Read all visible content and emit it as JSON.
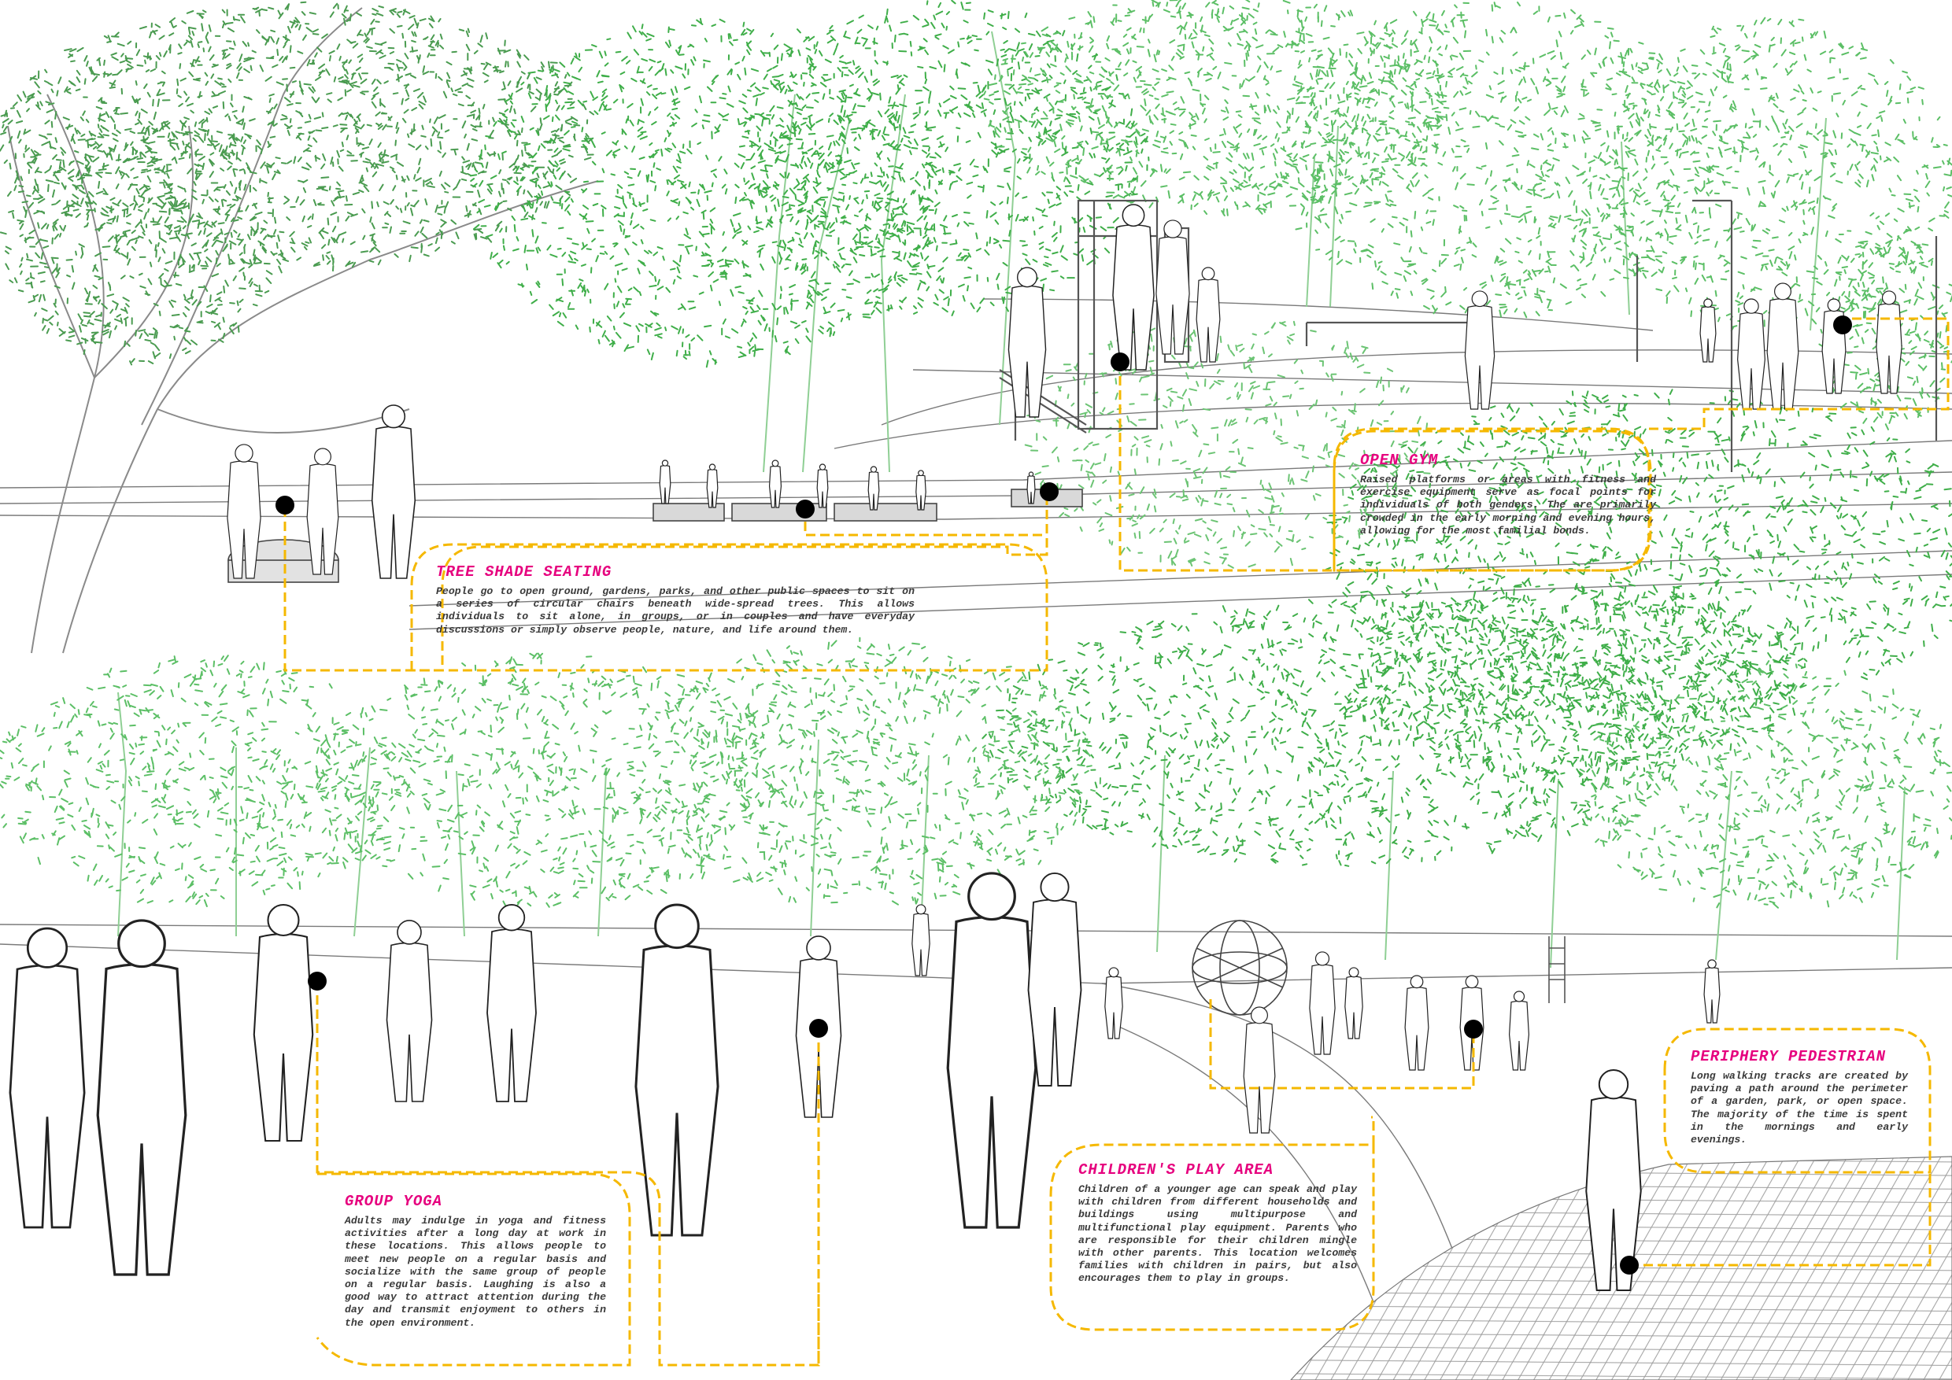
{
  "colors": {
    "leader": "#f5b800",
    "title": "#e6007e",
    "text": "#3a3a3a",
    "foliage": "#3fae49",
    "line": "#5a5a5a",
    "marker": "#000000"
  },
  "callouts": {
    "tree_shade": {
      "title": "TREE SHADE SEATING",
      "text": "People go to open ground, gardens, parks, and other public spaces to sit on a series of circular chairs beneath wide-spread trees. This allows individuals to sit alone, in groups, or in couples and have everyday discussions or simply observe people, nature, and life around them."
    },
    "open_gym": {
      "title": "OPEN GYM",
      "text": "Raised platforms or areas with fitness and exercise equipment serve as focal points for individuals of both genders. The are primarily crowded in the early morning and evening hours, allowing for the most familial bonds."
    },
    "group_yoga": {
      "title": "GROUP YOGA",
      "text": "Adults may indulge in yoga and fitness activities after a long day at work in these locations. This allows people to meet new people on a regular basis and socialize with the same group of people on a regular basis. Laughing is also a good way to attract attention during the day and transmit enjoyment to others in the open environment."
    },
    "play_area": {
      "title": "CHILDREN'S PLAY AREA",
      "text": "Children of a younger age can speak and play with children from different households and buildings using multipurpose and multifunctional play equipment. Parents who are responsible for their children mingle with other parents. This location welcomes families with children in pairs, but also encourages them to play in groups."
    },
    "periphery": {
      "title": "PERIPHERY PEDESTRIAN",
      "text": "Long walking tracks are created by paving a path around the perimeter of a garden, park, or open space. The majority of the time is spent in the mornings and early evenings."
    }
  }
}
